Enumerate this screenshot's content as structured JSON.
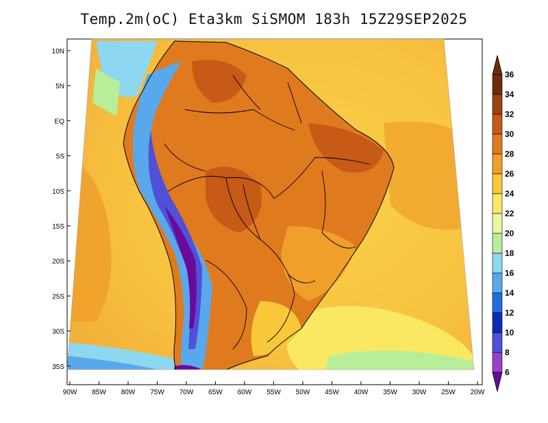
{
  "title": "Temp.2m(oC) Eta3km SiSMOM 183h 15Z29SEP2025",
  "map": {
    "variable": "2 m temperature",
    "units": "oC",
    "lat_ticks": [
      "10N",
      "5N",
      "EQ",
      "5S",
      "10S",
      "15S",
      "20S",
      "25S",
      "30S",
      "35S"
    ],
    "lon_ticks": [
      "90W",
      "85W",
      "80W",
      "75W",
      "70W",
      "65W",
      "60W",
      "55W",
      "50W",
      "45W",
      "40W",
      "35W",
      "30W",
      "25W",
      "20W"
    ]
  },
  "colorbar": {
    "labels": [
      "36",
      "34",
      "32",
      "30",
      "28",
      "26",
      "24",
      "22",
      "20",
      "18",
      "16",
      "14",
      "12",
      "10",
      "8",
      "6"
    ],
    "colors": [
      "#6b2d0c",
      "#9c4213",
      "#c65a16",
      "#e07a1e",
      "#f0a02a",
      "#f8c83a",
      "#fbe862",
      "#e8f8a0",
      "#b8ee9a",
      "#8dd8f0",
      "#5aa8ec",
      "#1e6ee0",
      "#0a2cb8",
      "#5050d8",
      "#9a40c8",
      "#6a0a9a"
    ]
  }
}
